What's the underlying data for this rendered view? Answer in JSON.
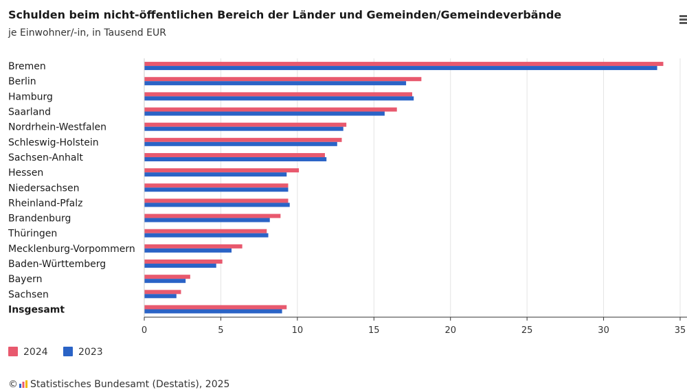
{
  "header": {
    "title": "Schulden beim nicht-öffentlichen Bereich der Länder und Gemeinden/Gemeindeverbände",
    "subtitle": "je Einwohner/-in, in Tausend EUR"
  },
  "footer": {
    "copyright_symbol": "©",
    "source": "Statistisches Bundesamt (Destatis), 2025"
  },
  "colors": {
    "series_2024": "#e8596e",
    "series_2023": "#2a63c6",
    "grid": "#e3e3e3",
    "axis": "#333333"
  },
  "chart_data": {
    "type": "bar",
    "orientation": "horizontal",
    "categories": [
      "Bremen",
      "Berlin",
      "Hamburg",
      "Saarland",
      "Nordrhein-Westfalen",
      "Schleswig-Holstein",
      "Sachsen-Anhalt",
      "Hessen",
      "Niedersachsen",
      "Rheinland-Pfalz",
      "Brandenburg",
      "Thüringen",
      "Mecklenburg-Vorpommern",
      "Baden-Württemberg",
      "Bayern",
      "Sachsen",
      "Insgesamt"
    ],
    "bold_categories": [
      "Insgesamt"
    ],
    "series": [
      {
        "name": "2024",
        "color": "#e8596e",
        "values": [
          33.9,
          18.1,
          17.5,
          16.5,
          13.2,
          12.9,
          11.8,
          10.1,
          9.4,
          9.4,
          8.9,
          8.0,
          6.4,
          5.1,
          3.0,
          2.4,
          9.3
        ]
      },
      {
        "name": "2023",
        "color": "#2a63c6",
        "values": [
          33.5,
          17.1,
          17.6,
          15.7,
          13.0,
          12.6,
          11.9,
          9.3,
          9.4,
          9.5,
          8.2,
          8.1,
          5.7,
          4.7,
          2.7,
          2.1,
          9.0
        ]
      }
    ],
    "x_ticks": [
      0,
      5,
      10,
      15,
      20,
      25,
      30,
      35
    ],
    "xlim": [
      0,
      35
    ],
    "grid": true,
    "legend_position": "bottom-left"
  }
}
